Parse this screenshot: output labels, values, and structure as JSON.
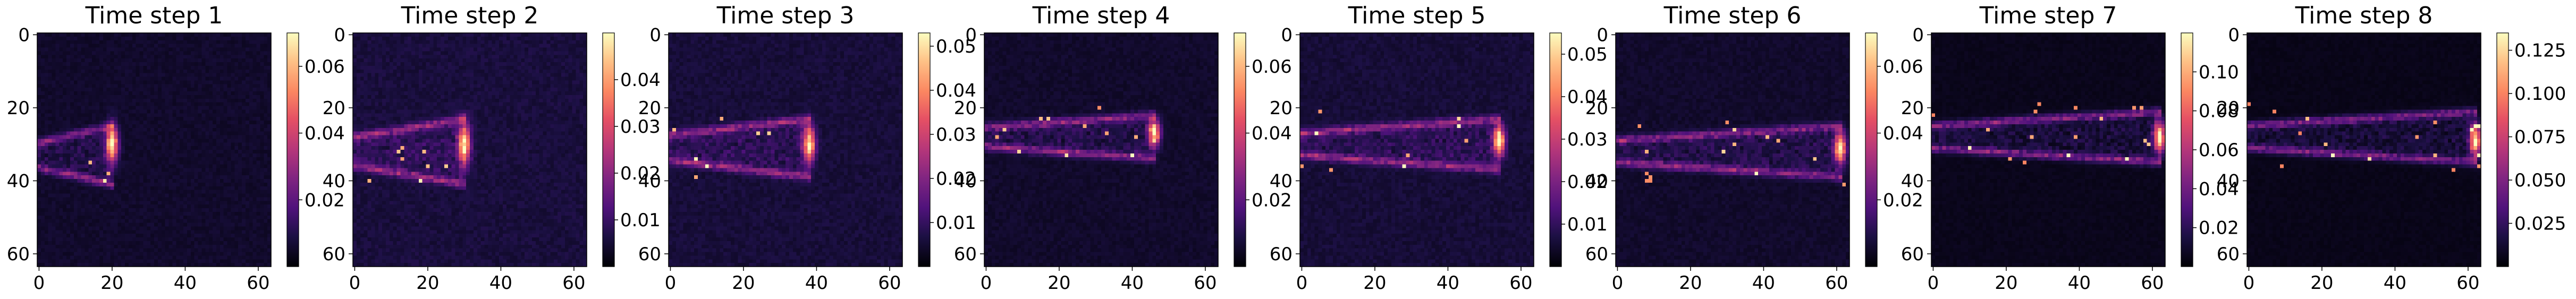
{
  "chart_data": [
    {
      "type": "heatmap",
      "title": "Time step 1",
      "x_ticks": [
        "0",
        "20",
        "40",
        "60"
      ],
      "y_ticks": [
        "0",
        "20",
        "40",
        "60"
      ],
      "grid_size": 64,
      "colorbar": {
        "ticks": [
          "0.02",
          "0.04",
          "0.06"
        ],
        "range": [
          0.0,
          0.07
        ]
      },
      "colormap": "magma",
      "plume": {
        "head_x": 20,
        "center_y": 30,
        "base_y": 33,
        "spread": 8,
        "peak": 0.07
      }
    },
    {
      "type": "heatmap",
      "title": "Time step 2",
      "x_ticks": [
        "0",
        "20",
        "40",
        "60"
      ],
      "y_ticks": [
        "0",
        "20",
        "40",
        "60"
      ],
      "grid_size": 64,
      "colorbar": {
        "ticks": [
          "0.01",
          "0.02",
          "0.03",
          "0.04"
        ],
        "range": [
          0.0,
          0.05
        ]
      },
      "colormap": "magma",
      "plume": {
        "head_x": 30,
        "center_y": 30,
        "base_y": 32,
        "spread": 9,
        "peak": 0.05
      }
    },
    {
      "type": "heatmap",
      "title": "Time step 3",
      "x_ticks": [
        "0",
        "20",
        "40",
        "60"
      ],
      "y_ticks": [
        "0",
        "20",
        "40",
        "60"
      ],
      "grid_size": 64,
      "colorbar": {
        "ticks": [
          "0.01",
          "0.02",
          "0.03",
          "0.04",
          "0.05"
        ],
        "range": [
          0.0,
          0.053
        ]
      },
      "colormap": "magma",
      "plume": {
        "head_x": 38,
        "center_y": 30,
        "base_y": 31,
        "spread": 8,
        "peak": 0.053
      }
    },
    {
      "type": "heatmap",
      "title": "Time step 4",
      "x_ticks": [
        "0",
        "20",
        "40",
        "60"
      ],
      "y_ticks": [
        "0",
        "20",
        "40",
        "60"
      ],
      "grid_size": 64,
      "colorbar": {
        "ticks": [
          "0.02",
          "0.04",
          "0.06"
        ],
        "range": [
          0.0,
          0.07
        ]
      },
      "colormap": "magma",
      "plume": {
        "head_x": 46,
        "center_y": 27,
        "base_y": 28,
        "spread": 6,
        "peak": 0.07
      }
    },
    {
      "type": "heatmap",
      "title": "Time step 5",
      "x_ticks": [
        "0",
        "20",
        "40",
        "60"
      ],
      "y_ticks": [
        "0",
        "20",
        "40",
        "60"
      ],
      "grid_size": 64,
      "colorbar": {
        "ticks": [
          "0.01",
          "0.02",
          "0.03",
          "0.04",
          "0.05"
        ],
        "range": [
          0.0,
          0.055
        ]
      },
      "colormap": "magma",
      "plume": {
        "head_x": 54,
        "center_y": 29,
        "base_y": 30,
        "spread": 7,
        "peak": 0.055
      }
    },
    {
      "type": "heatmap",
      "title": "Time step 6",
      "x_ticks": [
        "0",
        "20",
        "40",
        "60"
      ],
      "y_ticks": [
        "0",
        "20",
        "40",
        "60"
      ],
      "grid_size": 64,
      "colorbar": {
        "ticks": [
          "0.02",
          "0.04",
          "0.06"
        ],
        "range": [
          0.0,
          0.07
        ]
      },
      "colormap": "magma",
      "plume": {
        "head_x": 61,
        "center_y": 31,
        "base_y": 32,
        "spread": 7,
        "peak": 0.07
      }
    },
    {
      "type": "heatmap",
      "title": "Time step 7",
      "x_ticks": [
        "0",
        "20",
        "40",
        "60"
      ],
      "y_ticks": [
        "0",
        "20",
        "40",
        "60"
      ],
      "grid_size": 64,
      "colorbar": {
        "ticks": [
          "0.02",
          "0.04",
          "0.06",
          "0.08",
          "0.10"
        ],
        "range": [
          0.0,
          0.12
        ]
      },
      "colormap": "magma",
      "plume": {
        "head_x": 62,
        "center_y": 28,
        "base_y": 28,
        "spread": 7,
        "peak": 0.12
      }
    },
    {
      "type": "heatmap",
      "title": "Time step 8",
      "x_ticks": [
        "0",
        "20",
        "40",
        "60"
      ],
      "y_ticks": [
        "0",
        "20",
        "40",
        "60"
      ],
      "grid_size": 64,
      "colorbar": {
        "ticks": [
          "0.025",
          "0.050",
          "0.075",
          "0.100",
          "0.125"
        ],
        "range": [
          0.0,
          0.135
        ]
      },
      "colormap": "magma",
      "plume": {
        "head_x": 62,
        "center_y": 29,
        "base_y": 28,
        "spread": 7,
        "peak": 0.135
      }
    }
  ]
}
